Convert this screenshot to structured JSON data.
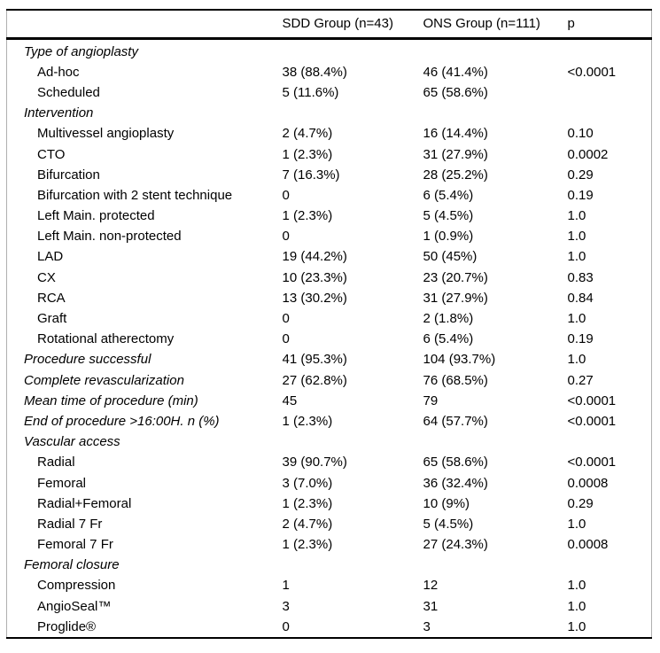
{
  "table": {
    "columns": [
      "",
      "SDD Group (n=43)",
      "ONS Group (n=111)",
      "p"
    ],
    "rows": [
      {
        "label": "Type of angioplasty",
        "indent": false,
        "c1": "",
        "c2": "",
        "p": ""
      },
      {
        "label": "Ad-hoc",
        "indent": true,
        "c1": "38 (88.4%)",
        "c2": "46 (41.4%)",
        "p": "<0.0001"
      },
      {
        "label": "Scheduled",
        "indent": true,
        "c1": "5 (11.6%)",
        "c2": "65 (58.6%)",
        "p": ""
      },
      {
        "label": "Intervention",
        "indent": false,
        "c1": "",
        "c2": "",
        "p": ""
      },
      {
        "label": "Multivessel angioplasty",
        "indent": true,
        "c1": "2 (4.7%)",
        "c2": "16 (14.4%)",
        "p": "0.10"
      },
      {
        "label": "CTO",
        "indent": true,
        "c1": "1 (2.3%)",
        "c2": "31 (27.9%)",
        "p": "0.0002"
      },
      {
        "label": "Bifurcation",
        "indent": true,
        "c1": "7 (16.3%)",
        "c2": "28 (25.2%)",
        "p": "0.29"
      },
      {
        "label": "Bifurcation with 2 stent technique",
        "indent": true,
        "c1": "0",
        "c2": "6 (5.4%)",
        "p": "0.19"
      },
      {
        "label": "Left Main. protected",
        "indent": true,
        "c1": "1 (2.3%)",
        "c2": "5 (4.5%)",
        "p": "1.0"
      },
      {
        "label": "Left Main. non-protected",
        "indent": true,
        "c1": "0",
        "c2": "1 (0.9%)",
        "p": "1.0"
      },
      {
        "label": "LAD",
        "indent": true,
        "c1": "19 (44.2%)",
        "c2": "50 (45%)",
        "p": "1.0"
      },
      {
        "label": "CX",
        "indent": true,
        "c1": "10 (23.3%)",
        "c2": "23 (20.7%)",
        "p": "0.83"
      },
      {
        "label": "RCA",
        "indent": true,
        "c1": "13 (30.2%)",
        "c2": "31 (27.9%)",
        "p": "0.84"
      },
      {
        "label": "Graft",
        "indent": true,
        "c1": "0",
        "c2": "2 (1.8%)",
        "p": "1.0"
      },
      {
        "label": "Rotational atherectomy",
        "indent": true,
        "c1": "0",
        "c2": "6 (5.4%)",
        "p": "0.19"
      },
      {
        "label": "Procedure successful",
        "indent": false,
        "c1": "41 (95.3%)",
        "c2": "104 (93.7%)",
        "p": "1.0"
      },
      {
        "label": "Complete revascularization",
        "indent": false,
        "c1": "27 (62.8%)",
        "c2": "76 (68.5%)",
        "p": "0.27"
      },
      {
        "label": "Mean time of procedure (min)",
        "indent": false,
        "c1": "45",
        "c2": "79",
        "p": "<0.0001"
      },
      {
        "label": "End of procedure >16:00H. n (%)",
        "indent": false,
        "c1": "1 (2.3%)",
        "c2": "64 (57.7%)",
        "p": "<0.0001"
      },
      {
        "label": "Vascular access",
        "indent": false,
        "c1": "",
        "c2": "",
        "p": ""
      },
      {
        "label": "Radial",
        "indent": true,
        "c1": "39 (90.7%)",
        "c2": "65 (58.6%)",
        "p": "<0.0001"
      },
      {
        "label": "Femoral",
        "indent": true,
        "c1": "3 (7.0%)",
        "c2": "36 (32.4%)",
        "p": "0.0008"
      },
      {
        "label": "Radial+Femoral",
        "indent": true,
        "c1": "1 (2.3%)",
        "c2": "10 (9%)",
        "p": "0.29"
      },
      {
        "label": "Radial 7 Fr",
        "indent": true,
        "c1": "2 (4.7%)",
        "c2": "5 (4.5%)",
        "p": "1.0"
      },
      {
        "label": "Femoral 7 Fr",
        "indent": true,
        "c1": "1 (2.3%)",
        "c2": "27 (24.3%)",
        "p": "0.0008"
      },
      {
        "label": "Femoral closure",
        "indent": false,
        "c1": "",
        "c2": "",
        "p": ""
      },
      {
        "label": "Compression",
        "indent": true,
        "c1": "1",
        "c2": "12",
        "p": "1.0"
      },
      {
        "label": "AngioSeal™",
        "indent": true,
        "c1": "3",
        "c2": "31",
        "p": "1.0"
      },
      {
        "label": "Proglide®",
        "indent": true,
        "c1": "0",
        "c2": "3",
        "p": "1.0"
      }
    ]
  },
  "colors": {
    "text": "#000000",
    "background": "#ffffff",
    "rule": "#000000"
  }
}
